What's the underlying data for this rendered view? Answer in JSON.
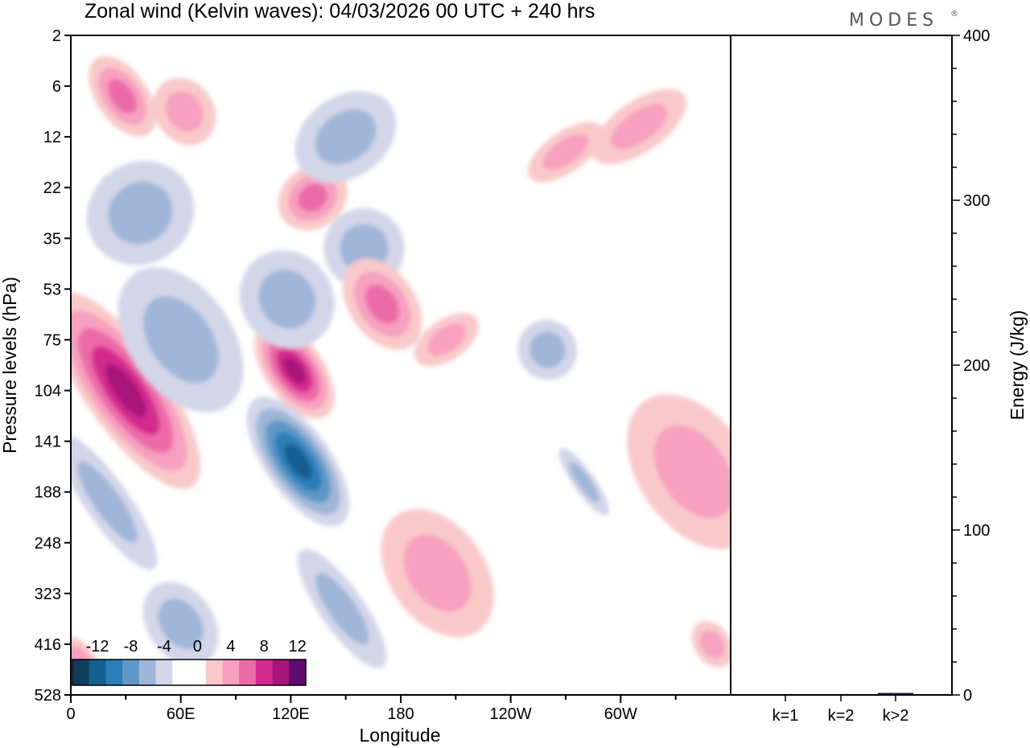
{
  "chart_data": [
    {
      "type": "heatmap",
      "title": "Zonal wind (Kelvin waves):  04/03/2026  00 UTC  + 240 hrs",
      "xlabel": "Longitude",
      "ylabel": "Pressure levels (hPa)",
      "x_ticks": [
        "0",
        "60E",
        "120E",
        "180",
        "120W",
        "60W"
      ],
      "y_ticks": [
        "2",
        "6",
        "12",
        "22",
        "35",
        "53",
        "75",
        "104",
        "141",
        "188",
        "248",
        "323",
        "416",
        "528"
      ],
      "colorbar": {
        "labels": [
          "-12",
          "-8",
          "-4",
          "0",
          "4",
          "8",
          "12"
        ],
        "colors": [
          "#0e3d5e",
          "#165f8f",
          "#2a7fb8",
          "#5f98c6",
          "#9fb6d8",
          "#d3d6e8",
          "#ffffff",
          "#ffffff",
          "#f9c9c9",
          "#f7a0bf",
          "#ec6aa8",
          "#d42a8e",
          "#a8157a",
          "#5e0a6e"
        ]
      },
      "features": [
        {
          "lon": 28,
          "lev": 1.2,
          "val": 6,
          "rx": 14,
          "ry": 0.9
        },
        {
          "lon": 62,
          "lev": 1.5,
          "val": 5,
          "rx": 16,
          "ry": 0.7
        },
        {
          "lon": 30,
          "lev": 7.0,
          "val": 11,
          "rx": 22,
          "ry": 2.3
        },
        {
          "lon": 60,
          "lev": 6.0,
          "val": -5,
          "rx": 28,
          "ry": 1.6
        },
        {
          "lon": 38,
          "lev": 3.5,
          "val": -4,
          "rx": 30,
          "ry": 1.0
        },
        {
          "lon": 122,
          "lev": 6.6,
          "val": 11,
          "rx": 16,
          "ry": 1.1
        },
        {
          "lon": 124,
          "lev": 8.4,
          "val": -11,
          "rx": 18,
          "ry": 1.5
        },
        {
          "lon": 118,
          "lev": 5.2,
          "val": -5,
          "rx": 25,
          "ry": 1.0
        },
        {
          "lon": 132,
          "lev": 3.2,
          "val": 6,
          "rx": 20,
          "ry": 0.6
        },
        {
          "lon": 160,
          "lev": 4.2,
          "val": -4,
          "rx": 22,
          "ry": 0.8
        },
        {
          "lon": 170,
          "lev": 5.3,
          "val": 7,
          "rx": 18,
          "ry": 1.0
        },
        {
          "lon": 20,
          "lev": 9.2,
          "val": -4,
          "rx": 12,
          "ry": 1.6
        },
        {
          "lon": 200,
          "lev": 10.6,
          "val": 4,
          "rx": 26,
          "ry": 1.4
        },
        {
          "lon": 280,
          "lev": 8.8,
          "val": -5,
          "rx": 6,
          "ry": 0.8
        },
        {
          "lon": 340,
          "lev": 8.6,
          "val": 5,
          "rx": 30,
          "ry": 1.7
        },
        {
          "lon": 310,
          "lev": 1.8,
          "val": 4,
          "rx": 30,
          "ry": 0.5
        },
        {
          "lon": 270,
          "lev": 2.3,
          "val": 5,
          "rx": 24,
          "ry": 0.4
        },
        {
          "lon": 60,
          "lev": 11.6,
          "val": -4,
          "rx": 18,
          "ry": 0.9
        },
        {
          "lon": 148,
          "lev": 11.3,
          "val": -4,
          "rx": 12,
          "ry": 1.4
        },
        {
          "lon": 260,
          "lev": 6.2,
          "val": -4,
          "rx": 16,
          "ry": 0.6
        },
        {
          "lon": 205,
          "lev": 6.0,
          "val": 4,
          "rx": 20,
          "ry": 0.4
        },
        {
          "lon": 5,
          "lev": 12.3,
          "val": 4,
          "rx": 8,
          "ry": 0.5
        },
        {
          "lon": 350,
          "lev": 12.0,
          "val": 4,
          "rx": 10,
          "ry": 0.5
        },
        {
          "lon": 150,
          "lev": 2.0,
          "val": -4,
          "rx": 30,
          "ry": 0.8
        }
      ]
    },
    {
      "type": "bar",
      "ylabel": "Energy (J/kg)",
      "categories": [
        "k=1",
        "k=2",
        "k>2"
      ],
      "values": [
        0.5,
        0.3,
        1.2
      ],
      "y_ticks": [
        "0",
        "100",
        "200",
        "300",
        "400"
      ],
      "ylim": [
        0,
        400
      ]
    }
  ],
  "brand": "MODES",
  "brand_mark": "®"
}
